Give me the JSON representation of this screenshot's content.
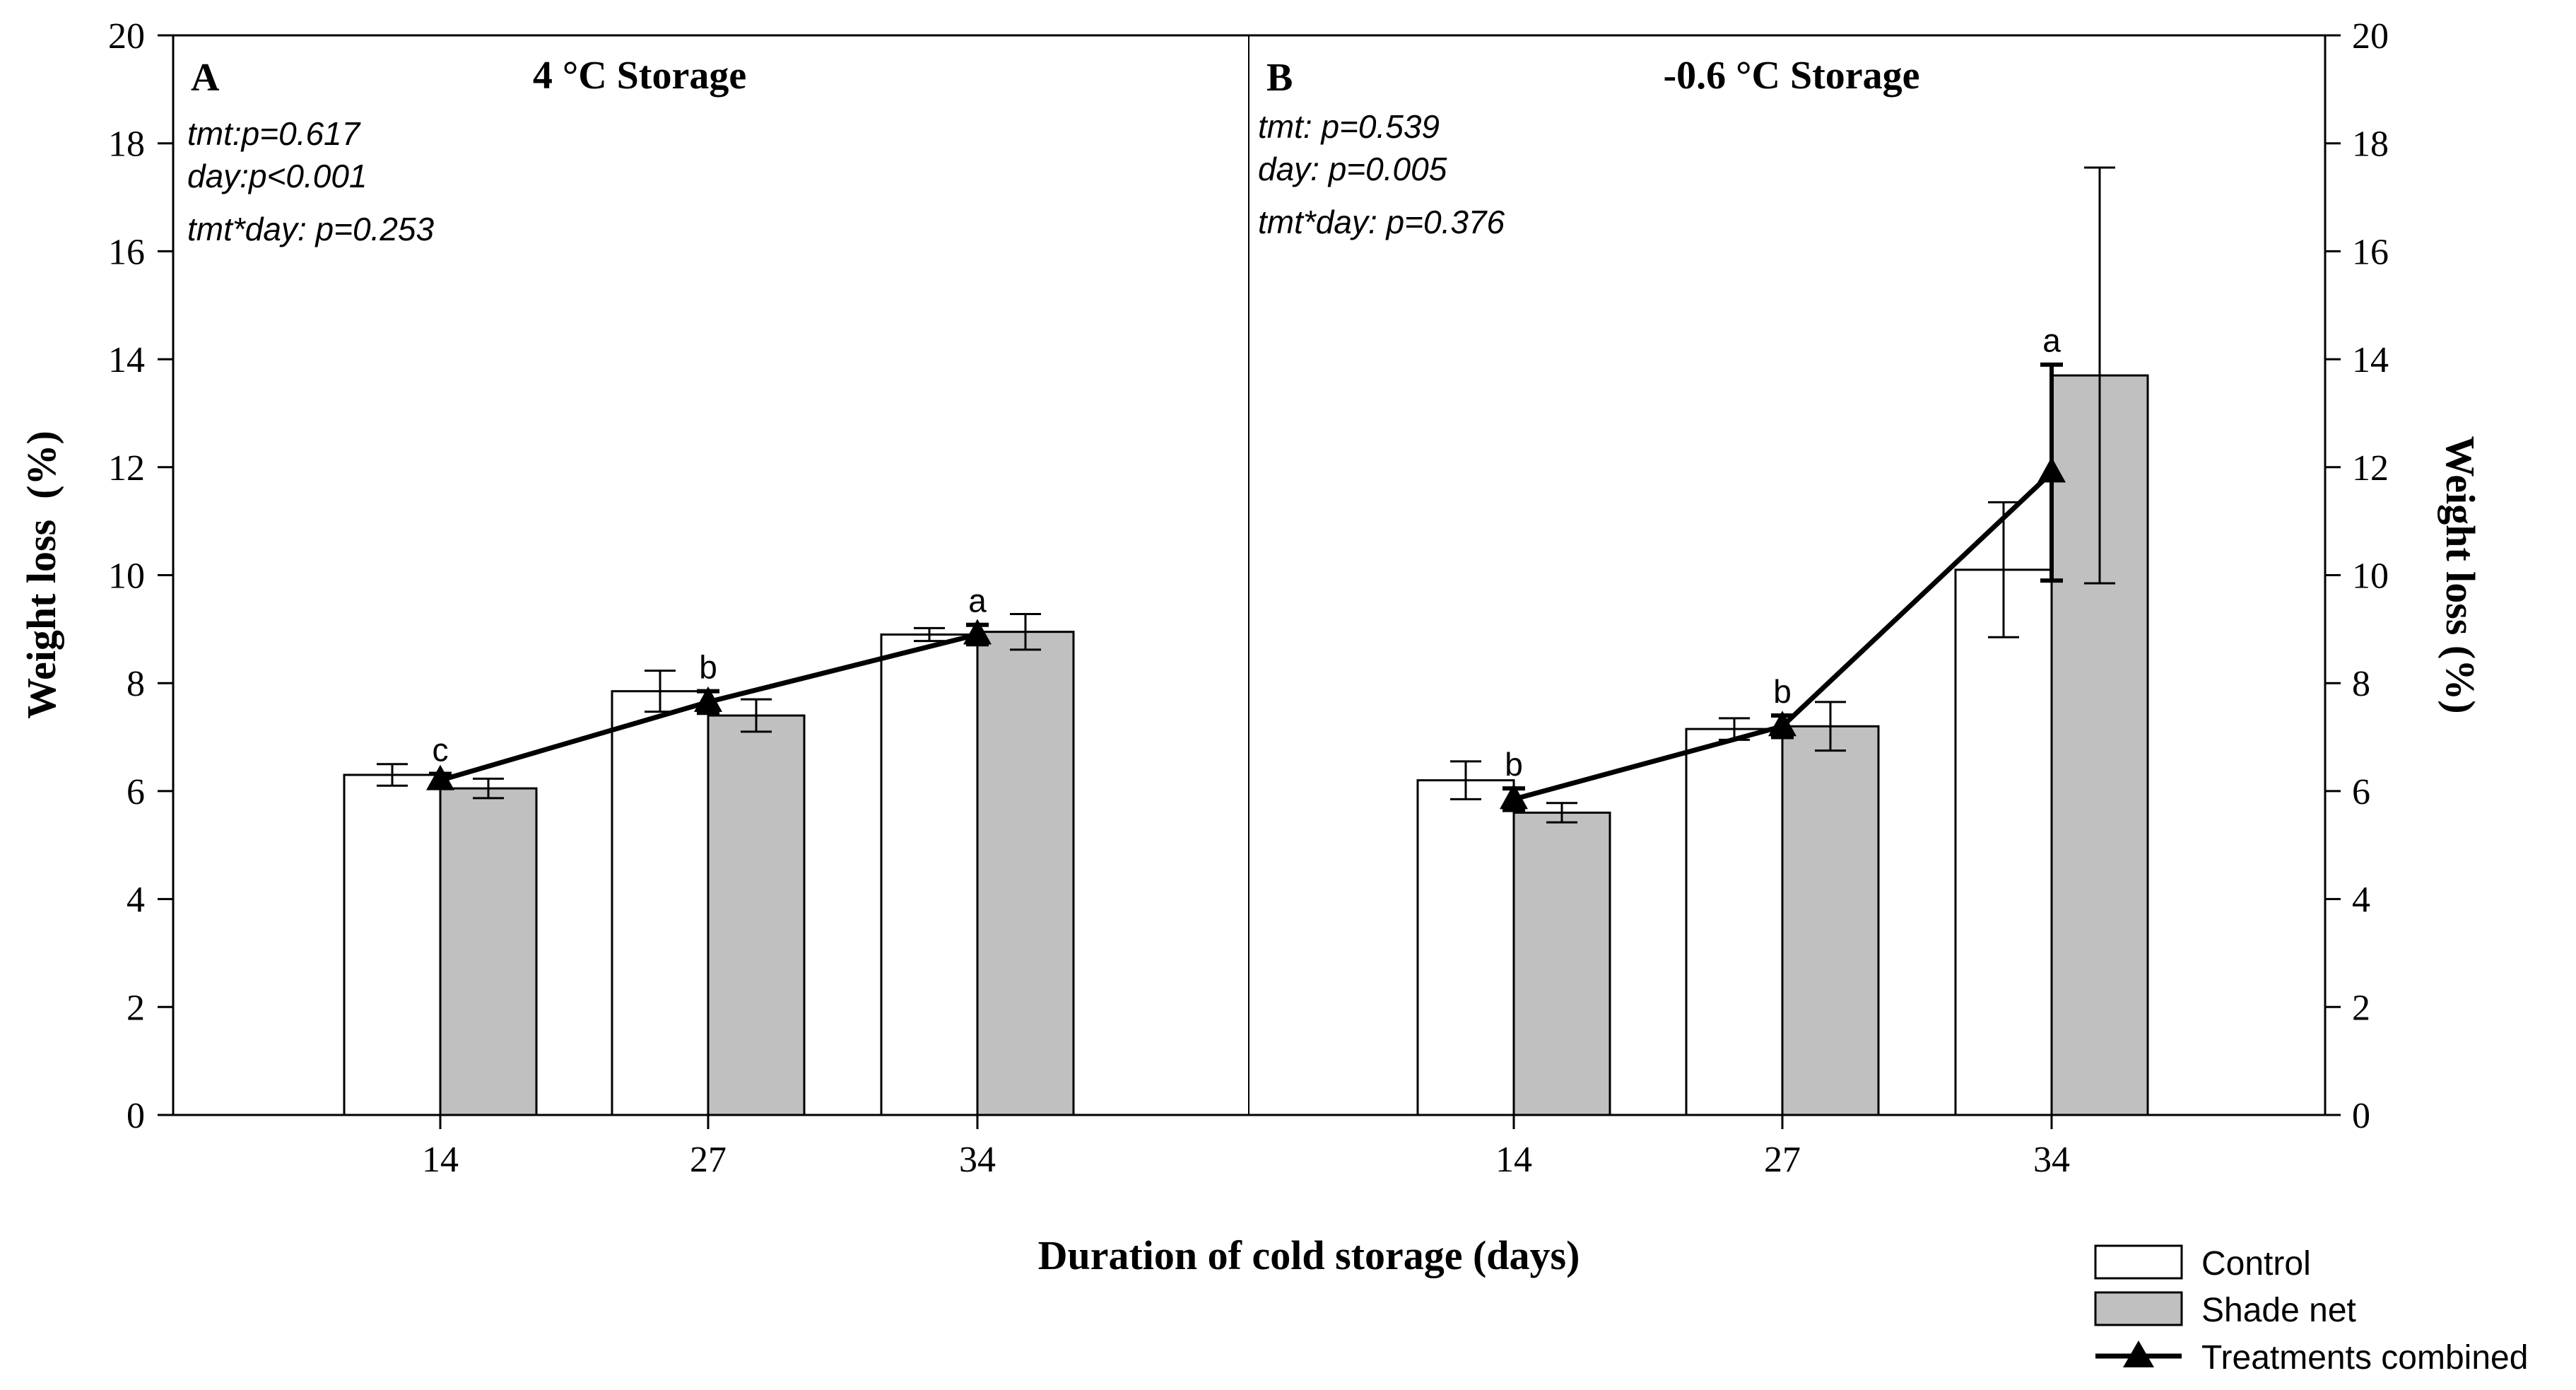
{
  "chart_data": [
    {
      "type": "bar",
      "panel_label": "A",
      "title": "4 °C Storage",
      "categories": [
        "14",
        "27",
        "34"
      ],
      "series": [
        {
          "name": "Control",
          "values": [
            6.3,
            7.85,
            8.9
          ],
          "errors": [
            0.2,
            0.38,
            0.12
          ]
        },
        {
          "name": "Shade net",
          "values": [
            6.05,
            7.4,
            8.95
          ],
          "errors": [
            0.18,
            0.3,
            0.33
          ]
        }
      ],
      "combined": {
        "name": "Treatments combined",
        "values": [
          6.2,
          7.65,
          8.9
        ],
        "errors": [
          0.12,
          0.2,
          0.18
        ],
        "letters": [
          "c",
          "b",
          "a"
        ]
      },
      "stats": [
        "tmt:p=0.617",
        "day:p<0.001",
        "tmt*day: p=0.253"
      ],
      "ylim": [
        0,
        20
      ]
    },
    {
      "type": "bar",
      "panel_label": "B",
      "title": "-0.6 °C Storage",
      "categories": [
        "14",
        "27",
        "34"
      ],
      "series": [
        {
          "name": "Control",
          "values": [
            6.2,
            7.15,
            10.1
          ],
          "errors": [
            0.35,
            0.2,
            1.25
          ]
        },
        {
          "name": "Shade net",
          "values": [
            5.6,
            7.2,
            13.7
          ],
          "errors": [
            0.18,
            0.45,
            3.85
          ]
        }
      ],
      "combined": {
        "name": "Treatments combined",
        "values": [
          5.85,
          7.2,
          11.9
        ],
        "errors": [
          0.2,
          0.2,
          2.0
        ],
        "letters": [
          "b",
          "b",
          "a"
        ]
      },
      "stats": [
        "tmt: p=0.539",
        "day: p=0.005",
        "tmt*day: p=0.376"
      ],
      "ylim": [
        0,
        20
      ]
    }
  ],
  "axes": {
    "xlabel": "Duration of cold storage (days)",
    "ylabel_left": "Weight loss  (%)",
    "ylabel_right": "Weight loss (%)",
    "yticks": [
      "0",
      "2",
      "4",
      "6",
      "8",
      "10",
      "12",
      "14",
      "16",
      "18",
      "20"
    ]
  },
  "legend": {
    "items": [
      {
        "label": "Control",
        "color": "#ffffff"
      },
      {
        "label": "Shade net",
        "color": "#c0c0c0"
      },
      {
        "label": "Treatments combined",
        "color": "#000000"
      }
    ]
  }
}
